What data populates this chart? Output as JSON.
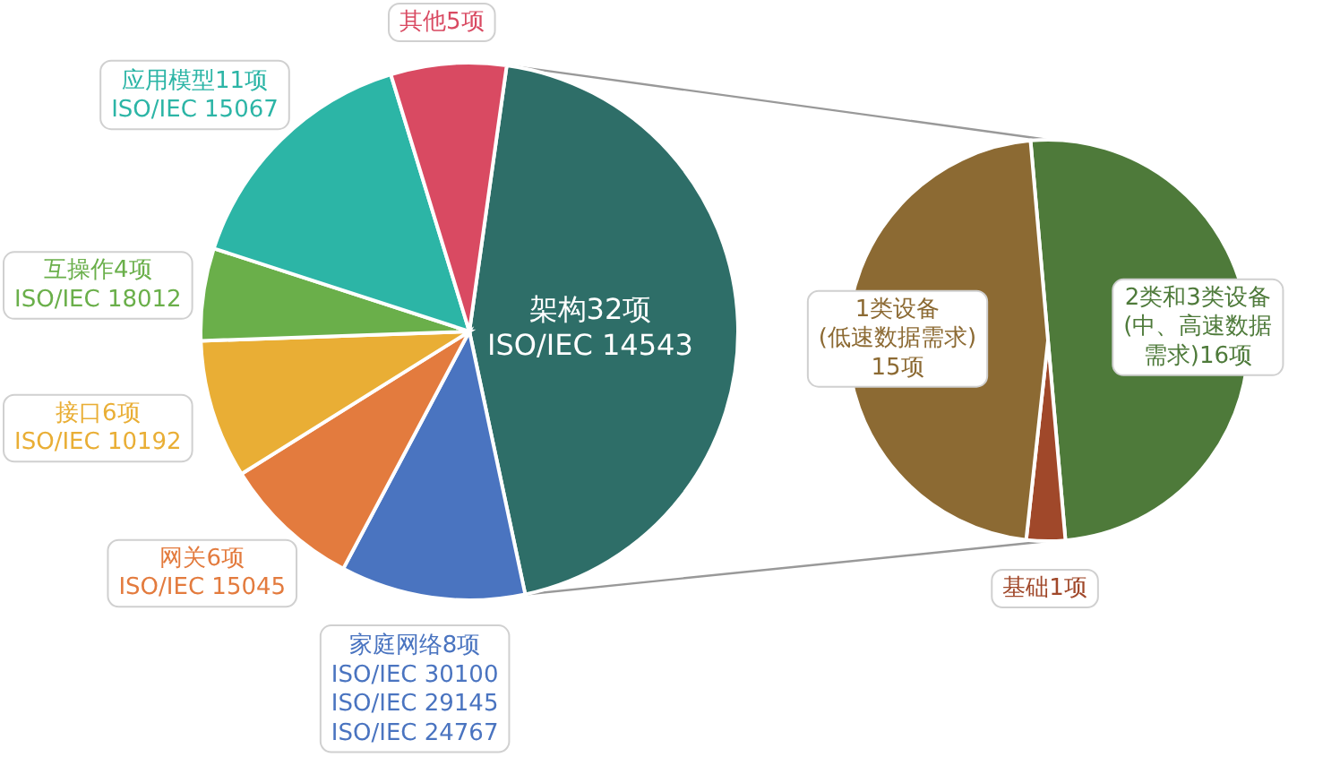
{
  "chart_data": [
    {
      "type": "pie",
      "categories": [
        "架构32项\nISO/IEC 14543",
        "家庭网络8项\nISO/IEC 30100\nISO/IEC 29145\nISO/IEC 24767",
        "网关6项\nISO/IEC 15045",
        "接口6项\nISO/IEC 10192",
        "互操作4项\nISO/IEC 18012",
        "应用模型11项\nISO/IEC 15067",
        "其他5项"
      ],
      "values": [
        32,
        8,
        6,
        6,
        4,
        11,
        5
      ],
      "colors": [
        "#2e6e68",
        "#4a74c0",
        "#e37b3e",
        "#e9ae35",
        "#6aaf4a",
        "#2cb5a6",
        "#d94a62"
      ]
    },
    {
      "type": "pie",
      "categories": [
        "2类和3类设备\n(中、高速数据需求)16项",
        "基础1项",
        "1类设备\n(低速数据需求)\n15项"
      ],
      "values": [
        16,
        1,
        15
      ],
      "colors": [
        "#4e7a3a",
        "#a0482a",
        "#8c6a33"
      ]
    }
  ]
}
